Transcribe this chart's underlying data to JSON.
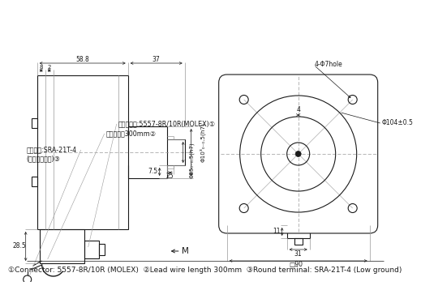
{
  "bg_color": "#ffffff",
  "line_color": "#1a1a1a",
  "gray_color": "#999999",
  "footer": "①Connector: 5557-8R/10R (MOLEX)  ②Lead wire length 300mm  ③Round terminal: SRA-21T-4 (Low ground)",
  "footer_fontsize": 6.5,
  "anno_fontsize": 5.8,
  "dim_fontsize": 5.5,
  "cn1": "连接器插头:5557-8R/10R(MOLEX)①",
  "cn2": "引出线长度300mm②",
  "cn3": "圆形端子:SRA-21T-4",
  "cn4": "(低压无接地线)③"
}
